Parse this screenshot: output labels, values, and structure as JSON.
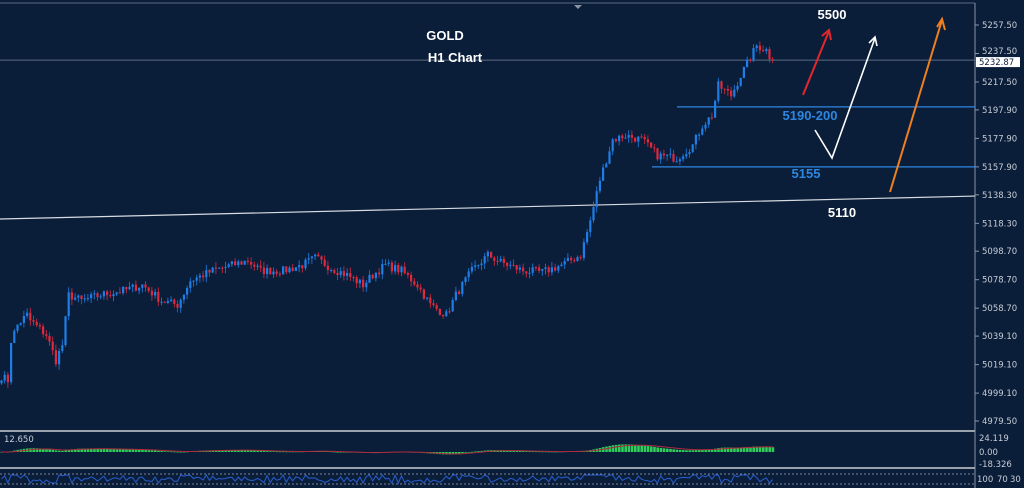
{
  "title": {
    "line1": "GOLD",
    "line2": "H1 Chart"
  },
  "annotations": {
    "target": "5500",
    "zone": "5190-200",
    "support1": "5155",
    "support2": "5110"
  },
  "colors": {
    "background": "#0a1e3a",
    "bull": "#1e7ee6",
    "bear": "#e0283c",
    "levels": "#2f86e0",
    "trendline": "#d8dce2",
    "arrow_red": "#e3262d",
    "arrow_white": "#ffffff",
    "arrow_orange": "#f07f1d",
    "macd_hist": "#2ecc5a",
    "macd_signal": "#b0283c"
  },
  "chart_data": {
    "type": "candlestick",
    "symbol": "GOLD",
    "timeframe": "H1",
    "ylim": [
      4970,
      5268
    ],
    "y_ticks": [
      "5257.50",
      "5237.50",
      "5217.50",
      "5197.90",
      "5177.90",
      "5157.90",
      "5138.30",
      "5118.30",
      "5098.70",
      "5078.70",
      "5058.70",
      "5039.10",
      "5019.10",
      "4999.10",
      "4979.50"
    ],
    "current_price": "5232.87",
    "levels": [
      5200,
      5157.9
    ],
    "trendline": [
      5121.3,
      5137.4
    ],
    "close_keypoints": [
      [
        0,
        5011
      ],
      [
        2,
        5008
      ],
      [
        3,
        5036
      ],
      [
        5,
        5047
      ],
      [
        8,
        5054
      ],
      [
        9,
        5050
      ],
      [
        14,
        5040
      ],
      [
        17,
        5022
      ],
      [
        19,
        5033
      ],
      [
        21,
        5068
      ],
      [
        25,
        5064
      ],
      [
        31,
        5068
      ],
      [
        38,
        5071
      ],
      [
        44,
        5075
      ],
      [
        50,
        5064
      ],
      [
        55,
        5061
      ],
      [
        59,
        5078
      ],
      [
        66,
        5085
      ],
      [
        72,
        5089
      ],
      [
        77,
        5092
      ],
      [
        81,
        5085
      ],
      [
        88,
        5085
      ],
      [
        94,
        5089
      ],
      [
        98,
        5094
      ],
      [
        103,
        5087
      ],
      [
        108,
        5082
      ],
      [
        113,
        5075
      ],
      [
        116,
        5082
      ],
      [
        120,
        5089
      ],
      [
        125,
        5085
      ],
      [
        130,
        5075
      ],
      [
        134,
        5061
      ],
      [
        139,
        5054
      ],
      [
        142,
        5068
      ],
      [
        147,
        5085
      ],
      [
        152,
        5096
      ],
      [
        156,
        5091
      ],
      [
        163,
        5085
      ],
      [
        169,
        5084
      ],
      [
        175,
        5089
      ],
      [
        181,
        5096
      ],
      [
        184,
        5120
      ],
      [
        187,
        5149
      ],
      [
        191,
        5177
      ],
      [
        195,
        5180
      ],
      [
        200,
        5177
      ],
      [
        205,
        5166
      ],
      [
        211,
        5164
      ],
      [
        216,
        5173
      ],
      [
        219,
        5187
      ],
      [
        222,
        5194
      ],
      [
        224,
        5215
      ],
      [
        228,
        5208
      ],
      [
        231,
        5222
      ],
      [
        236,
        5243
      ],
      [
        239,
        5240
      ],
      [
        241,
        5231
      ]
    ],
    "macd": {
      "value_label": "12.650",
      "ticks": [
        "24.119",
        "0.00",
        "-18.326"
      ]
    },
    "oscillator": {
      "ticks": [
        "100",
        "70",
        "30"
      ]
    }
  }
}
